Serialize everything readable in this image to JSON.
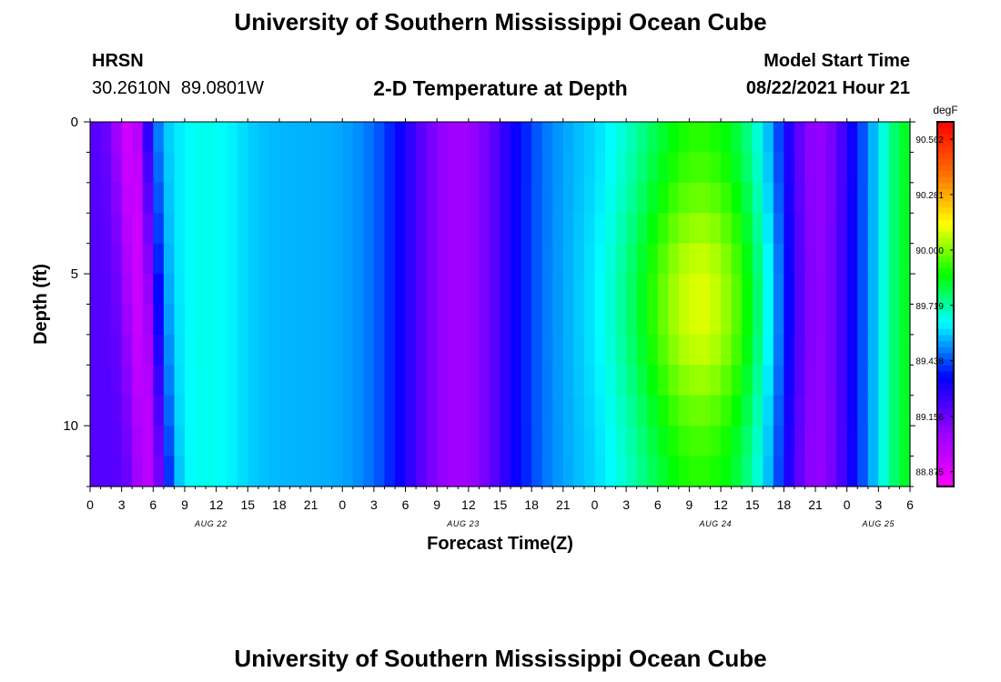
{
  "page_title": "University of Southern Mississippi Ocean Cube",
  "footer_title": "University of Southern Mississippi Ocean Cube",
  "station": {
    "name": "HRSN",
    "coords": "30.2610N  89.0801W"
  },
  "model": {
    "label": "Model Start Time",
    "value": "08/22/2021 Hour 21"
  },
  "chart_data": {
    "type": "heatmap",
    "title": "2-D Temperature at Depth",
    "xlabel": "Forecast Time(Z)",
    "ylabel": "Depth (ft)",
    "x_unit": "hours from 00Z Aug 22",
    "xlim": [
      0,
      78
    ],
    "ylim": [
      0,
      12
    ],
    "x_ticks": [
      0,
      3,
      6,
      9,
      12,
      15,
      18,
      21,
      24,
      27,
      30,
      33,
      36,
      39,
      42,
      45,
      48,
      51,
      54,
      57,
      60,
      63,
      66,
      69,
      72,
      75,
      78
    ],
    "x_tick_labels": [
      "0",
      "3",
      "6",
      "9",
      "12",
      "15",
      "18",
      "21",
      "0",
      "3",
      "6",
      "9",
      "12",
      "15",
      "18",
      "21",
      "0",
      "3",
      "6",
      "9",
      "12",
      "15",
      "18",
      "21",
      "0",
      "3",
      "6"
    ],
    "y_ticks": [
      0,
      5,
      10
    ],
    "y_tick_labels": [
      "0",
      "5",
      "10"
    ],
    "date_labels": [
      {
        "x": 11.5,
        "text": "AUG 22"
      },
      {
        "x": 35.5,
        "text": "AUG 23"
      },
      {
        "x": 59.5,
        "text": "AUG 24"
      },
      {
        "x": 75,
        "text": "AUG 25"
      }
    ],
    "colorbar": {
      "unit": "degF",
      "min": 88.8,
      "max": 90.65,
      "tick_values": [
        90.562,
        90.281,
        90.0,
        89.719,
        89.438,
        89.156,
        88.875
      ],
      "tick_labels": [
        "90.562",
        "90.281",
        "90.000",
        "89.719",
        "89.438",
        "89.156",
        "88.875"
      ]
    },
    "depth_levels_ft": [
      0.5,
      1.5,
      2.5,
      3.5,
      4.5,
      5.5,
      6.5,
      7.5,
      8.5,
      9.5,
      10.5,
      11.5
    ],
    "time_step_hours": 1,
    "value_grid_source": "interpolated from hourly model output, degF"
  }
}
